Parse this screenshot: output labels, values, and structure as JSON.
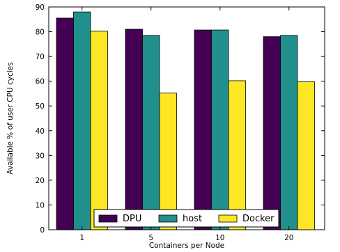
{
  "chart_data": {
    "type": "bar",
    "title": "",
    "xlabel": "Containers per Node",
    "ylabel": "Available % of user CPU cycles",
    "categories": [
      "1",
      "5",
      "10",
      "20"
    ],
    "series": [
      {
        "name": "DPU",
        "color": "#440154",
        "values": [
          85.5,
          81,
          80.7,
          78
        ]
      },
      {
        "name": "host",
        "color": "#21908c",
        "values": [
          88,
          78.5,
          80.7,
          78.5
        ]
      },
      {
        "name": "Docker",
        "color": "#fde725",
        "values": [
          80.2,
          55.2,
          60.2,
          59.8
        ]
      }
    ],
    "ylim": [
      0,
      90
    ],
    "yticks": [
      0,
      10,
      20,
      30,
      40,
      50,
      60,
      70,
      80,
      90
    ],
    "grid": false,
    "legend_position": "bottom-center"
  }
}
